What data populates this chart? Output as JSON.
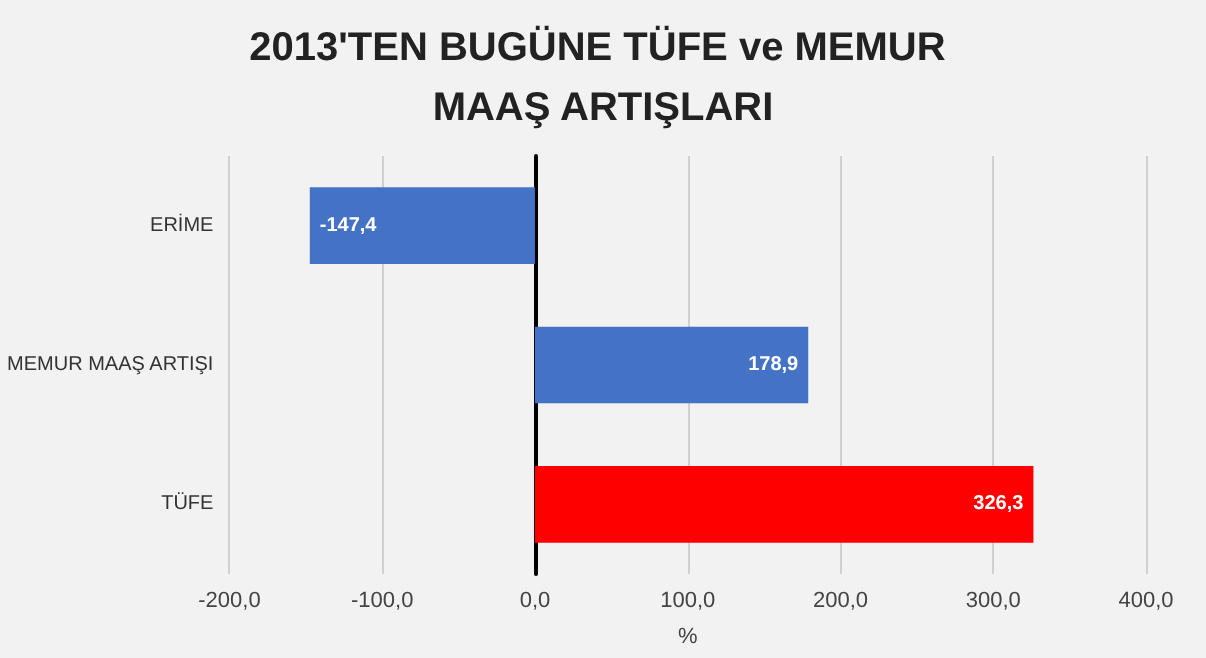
{
  "chart_data": {
    "type": "bar",
    "orientation": "horizontal",
    "title": "2013'TEN BUGÜNE TÜFE ve MEMUR MAAŞ ARTIŞLARI",
    "xlabel": "%",
    "categories": [
      "ERİME",
      "MEMUR MAAŞ ARTIŞI",
      "TÜFE"
    ],
    "values": [
      -147.4,
      178.9,
      326.3
    ],
    "colors": [
      "#4472c4",
      "#4472c4",
      "#ff0000"
    ],
    "value_labels": [
      "-147,4",
      "178,9",
      "326,3"
    ],
    "xlim": [
      -200,
      400
    ],
    "xticks": [
      {
        "value": -200,
        "label": "-200,0"
      },
      {
        "value": -100,
        "label": "-100,0"
      },
      {
        "value": 0,
        "label": "0,0"
      },
      {
        "value": 100,
        "label": "100,0"
      },
      {
        "value": 200,
        "label": "200,0"
      },
      {
        "value": 300,
        "label": "300,0"
      },
      {
        "value": 400,
        "label": "400,0"
      }
    ],
    "grid": "x"
  }
}
